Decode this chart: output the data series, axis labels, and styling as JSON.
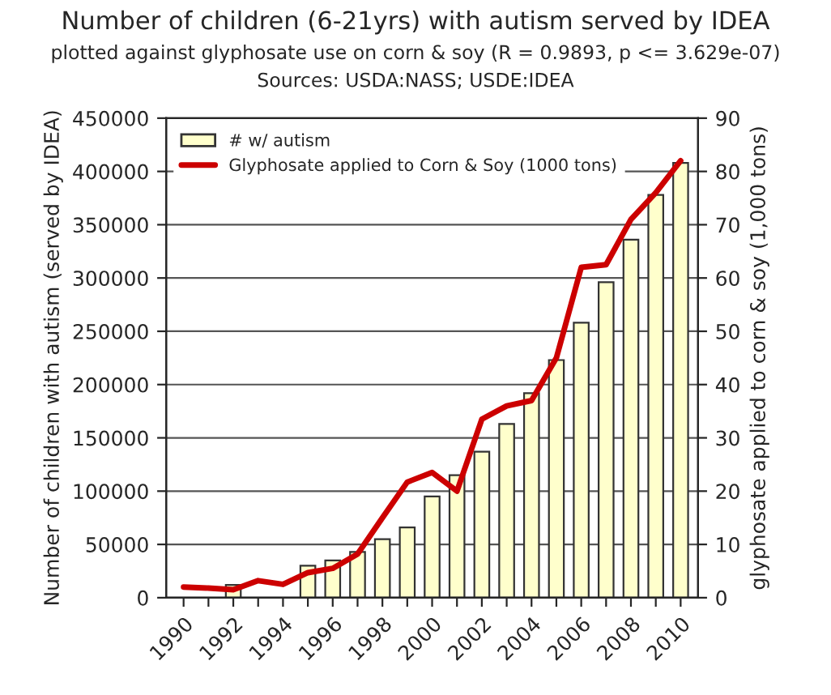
{
  "chart_data": {
    "type": "bar",
    "title": "Number of children (6-21yrs) with autism served by IDEA",
    "subtitle": "plotted against glyphosate use on corn & soy (R = 0.9893, p <= 3.629e-07)",
    "annotations": [
      "Sources: USDA:NASS; USDE:IDEA"
    ],
    "ylabel": "Number of children with autism (served by IDEA)",
    "y2label": "glyphosate applied to corn & soy (1,000 tons)",
    "categories": [
      "1990",
      null,
      "1992",
      null,
      "1994",
      null,
      "1996",
      null,
      "1998",
      null,
      "2000",
      null,
      "2002",
      null,
      "2004",
      null,
      "2006",
      null,
      "2008",
      null,
      "2010"
    ],
    "series": [
      {
        "name": "# w/ autism",
        "color": "#ffffcc",
        "values": [
          null,
          null,
          12000,
          null,
          null,
          30000,
          35000,
          43000,
          55000,
          66000,
          95000,
          115000,
          137000,
          163000,
          192000,
          223000,
          258000,
          296000,
          336000,
          378000,
          408000
        ]
      },
      {
        "name": "Glyphosate applied to Corn & Soy (1000 tons)",
        "type": "line",
        "axis": "y2",
        "color": "#cc0000",
        "values": [
          2,
          1.8,
          1.5,
          3.2,
          2.5,
          4.7,
          5.5,
          8.2,
          15,
          21.7,
          23.5,
          20,
          33.5,
          36,
          37,
          45,
          62,
          62.5,
          71,
          76,
          82
        ]
      }
    ],
    "ylim": [
      0,
      450000
    ],
    "yticks": [
      0,
      50000,
      100000,
      150000,
      200000,
      250000,
      300000,
      350000,
      400000,
      450000
    ],
    "y2lim": [
      0,
      90
    ],
    "y2ticks": [
      0,
      10,
      20,
      30,
      40,
      50,
      60,
      70,
      80,
      90
    ],
    "grid": "y",
    "legend": "top left"
  }
}
